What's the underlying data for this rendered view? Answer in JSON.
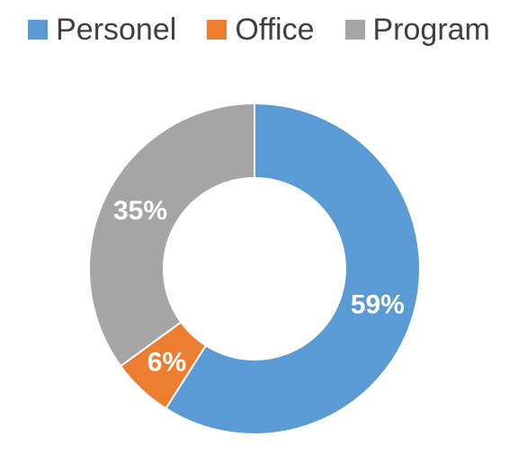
{
  "chart_data": {
    "type": "pie",
    "variant": "donut",
    "title": "",
    "legend_position": "top",
    "slices": [
      {
        "label": "Personel",
        "value": 59,
        "display": "59%",
        "color": "#5B9BD5"
      },
      {
        "label": "Office",
        "value": 6,
        "display": "6%",
        "color": "#ED7D31"
      },
      {
        "label": "Program",
        "value": 35,
        "display": "35%",
        "color": "#A5A5A5"
      }
    ]
  }
}
